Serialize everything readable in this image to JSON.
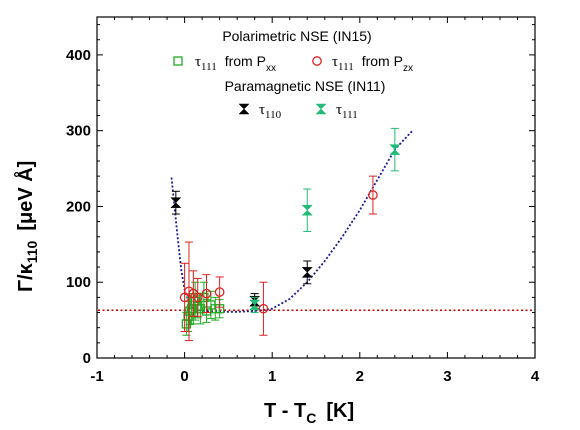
{
  "chart_data": {
    "type": "scatter",
    "xlabel": "T - T",
    "xlabel_sub": "C",
    "xlabel_unit": "[K]",
    "ylabel": "Γ/κ",
    "ylabel_sub": "110",
    "ylabel_unit": "[μeV Å]",
    "xlim": [
      -1,
      4
    ],
    "ylim": [
      0,
      450
    ],
    "xticks": [
      "-1",
      "0",
      "1",
      "2",
      "3",
      "4"
    ],
    "yticks": [
      "0",
      "100",
      "200",
      "300",
      "400"
    ],
    "legend": {
      "group1_title": "Polarimetric NSE (IN15)",
      "group2_title": "Paramagnetic NSE (IN11)",
      "tau": "τ",
      "entries": [
        {
          "sub": "111",
          "text": "from P",
          "text_sub": "xx"
        },
        {
          "sub": "111",
          "text": "from P",
          "text_sub": "zx"
        },
        {
          "sub": "110",
          "text": "",
          "text_sub": ""
        },
        {
          "sub": "111",
          "text": "",
          "text_sub": ""
        }
      ]
    },
    "series": [
      {
        "marker": "square",
        "color": "#22aa22",
        "points": [
          {
            "x": 0.02,
            "y": 45,
            "err": 15
          },
          {
            "x": 0.04,
            "y": 55,
            "err": 20
          },
          {
            "x": 0.06,
            "y": 62,
            "err": 18
          },
          {
            "x": 0.08,
            "y": 65,
            "err": 20
          },
          {
            "x": 0.1,
            "y": 60,
            "err": 15
          },
          {
            "x": 0.12,
            "y": 75,
            "err": 25
          },
          {
            "x": 0.15,
            "y": 68,
            "err": 15
          },
          {
            "x": 0.18,
            "y": 65,
            "err": 20
          },
          {
            "x": 0.22,
            "y": 80,
            "err": 20
          },
          {
            "x": 0.25,
            "y": 62,
            "err": 15
          },
          {
            "x": 0.3,
            "y": 70,
            "err": 18
          },
          {
            "x": 0.35,
            "y": 65,
            "err": 15
          },
          {
            "x": 0.4,
            "y": 65,
            "err": 12
          }
        ]
      },
      {
        "marker": "circle",
        "color": "#dd2222",
        "points": [
          {
            "x": 0.0,
            "y": 80,
            "err": 45
          },
          {
            "x": 0.05,
            "y": 88,
            "err": 65
          },
          {
            "x": 0.1,
            "y": 85,
            "err": 30
          },
          {
            "x": 0.15,
            "y": 80,
            "err": 25
          },
          {
            "x": 0.25,
            "y": 85,
            "err": 25
          },
          {
            "x": 0.4,
            "y": 87,
            "err": 20
          },
          {
            "x": 0.9,
            "y": 65,
            "err": 35
          },
          {
            "x": 2.15,
            "y": 215,
            "err": 25
          }
        ]
      },
      {
        "marker": "bowtie",
        "color": "#000000",
        "points": [
          {
            "x": -0.1,
            "y": 205,
            "err": 15
          },
          {
            "x": 0.8,
            "y": 75,
            "err": 10
          },
          {
            "x": 1.4,
            "y": 113,
            "err": 15
          }
        ]
      },
      {
        "marker": "bowtie",
        "color": "#22bb77",
        "points": [
          {
            "x": 0.8,
            "y": 70,
            "err": 10
          },
          {
            "x": 1.4,
            "y": 195,
            "err": 28
          },
          {
            "x": 2.4,
            "y": 275,
            "err": 28
          }
        ]
      }
    ],
    "fit_curve": {
      "color": "#1a1a99",
      "points": [
        [
          -0.15,
          238
        ],
        [
          -0.12,
          205
        ],
        [
          -0.08,
          160
        ],
        [
          -0.04,
          118
        ],
        [
          0.0,
          90
        ],
        [
          0.05,
          72
        ],
        [
          0.1,
          65
        ],
        [
          0.2,
          62
        ],
        [
          0.4,
          61
        ],
        [
          0.6,
          61
        ],
        [
          0.8,
          62
        ],
        [
          1.0,
          65
        ],
        [
          1.2,
          78
        ],
        [
          1.4,
          100
        ],
        [
          1.6,
          128
        ],
        [
          1.8,
          160
        ],
        [
          2.0,
          195
        ],
        [
          2.2,
          235
        ],
        [
          2.4,
          275
        ],
        [
          2.6,
          300
        ]
      ]
    },
    "reference_line": {
      "y": 63,
      "color": "#cc0000"
    }
  }
}
